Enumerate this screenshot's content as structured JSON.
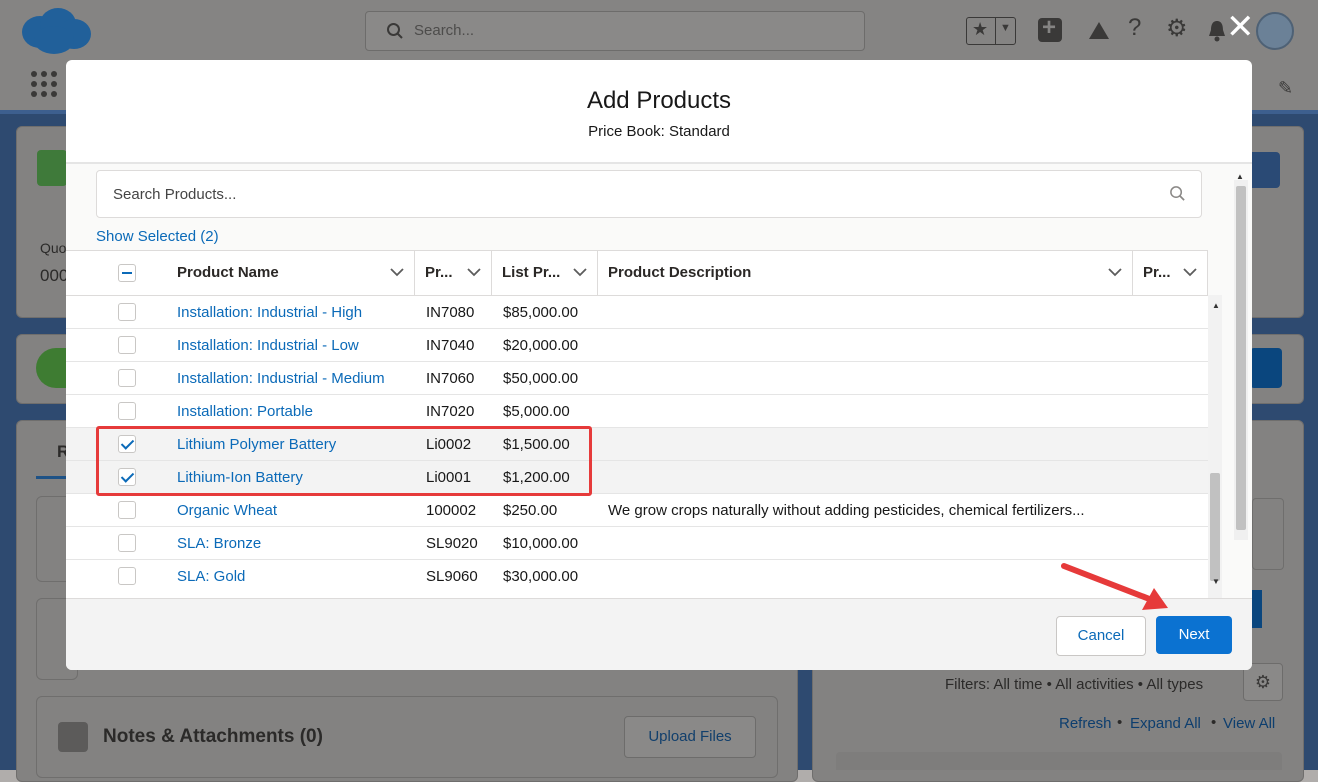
{
  "background": {
    "search_placeholder": "Search...",
    "bg_text_left_1": "Quo",
    "bg_text_left_2": "000",
    "bg_text_tab": "R",
    "notes_title": "Notes & Attachments (0)",
    "upload_files_label": "Upload Files",
    "filters_text": "Filters: All time • All activities • All types",
    "refresh_label": "Refresh",
    "expand_all_label": "Expand All",
    "view_all_label": "View All"
  },
  "modal": {
    "title": "Add Products",
    "subtitle": "Price Book: Standard",
    "search_placeholder": "Search Products...",
    "show_selected": "Show Selected (2)",
    "columns": {
      "name": "Product Name",
      "code": "Pr...",
      "price": "List Pr...",
      "description": "Product Description",
      "family": "Pr..."
    },
    "rows": [
      {
        "name": "Installation: Industrial - High",
        "code": "IN7080",
        "price": "$85,000.00",
        "description": "",
        "checked": false
      },
      {
        "name": "Installation: Industrial - Low",
        "code": "IN7040",
        "price": "$20,000.00",
        "description": "",
        "checked": false
      },
      {
        "name": "Installation: Industrial - Medium",
        "code": "IN7060",
        "price": "$50,000.00",
        "description": "",
        "checked": false
      },
      {
        "name": "Installation: Portable",
        "code": "IN7020",
        "price": "$5,000.00",
        "description": "",
        "checked": false
      },
      {
        "name": "Lithium Polymer Battery",
        "code": "Li0002",
        "price": "$1,500.00",
        "description": "",
        "checked": true
      },
      {
        "name": "Lithium-Ion Battery",
        "code": "Li0001",
        "price": "$1,200.00",
        "description": "",
        "checked": true
      },
      {
        "name": "Organic Wheat",
        "code": "100002",
        "price": "$250.00",
        "description": "We grow crops naturally without adding pesticides, chemical fertilizers...",
        "checked": false
      },
      {
        "name": "SLA: Bronze",
        "code": "SL9020",
        "price": "$10,000.00",
        "description": "",
        "checked": false
      },
      {
        "name": "SLA: Gold",
        "code": "SL9060",
        "price": "$30,000.00",
        "description": "",
        "checked": false
      }
    ],
    "cancel_label": "Cancel",
    "next_label": "Next"
  },
  "colors": {
    "link": "#0b6ab8",
    "brand_button": "#0b72d1",
    "highlight": "#e63a3a"
  }
}
